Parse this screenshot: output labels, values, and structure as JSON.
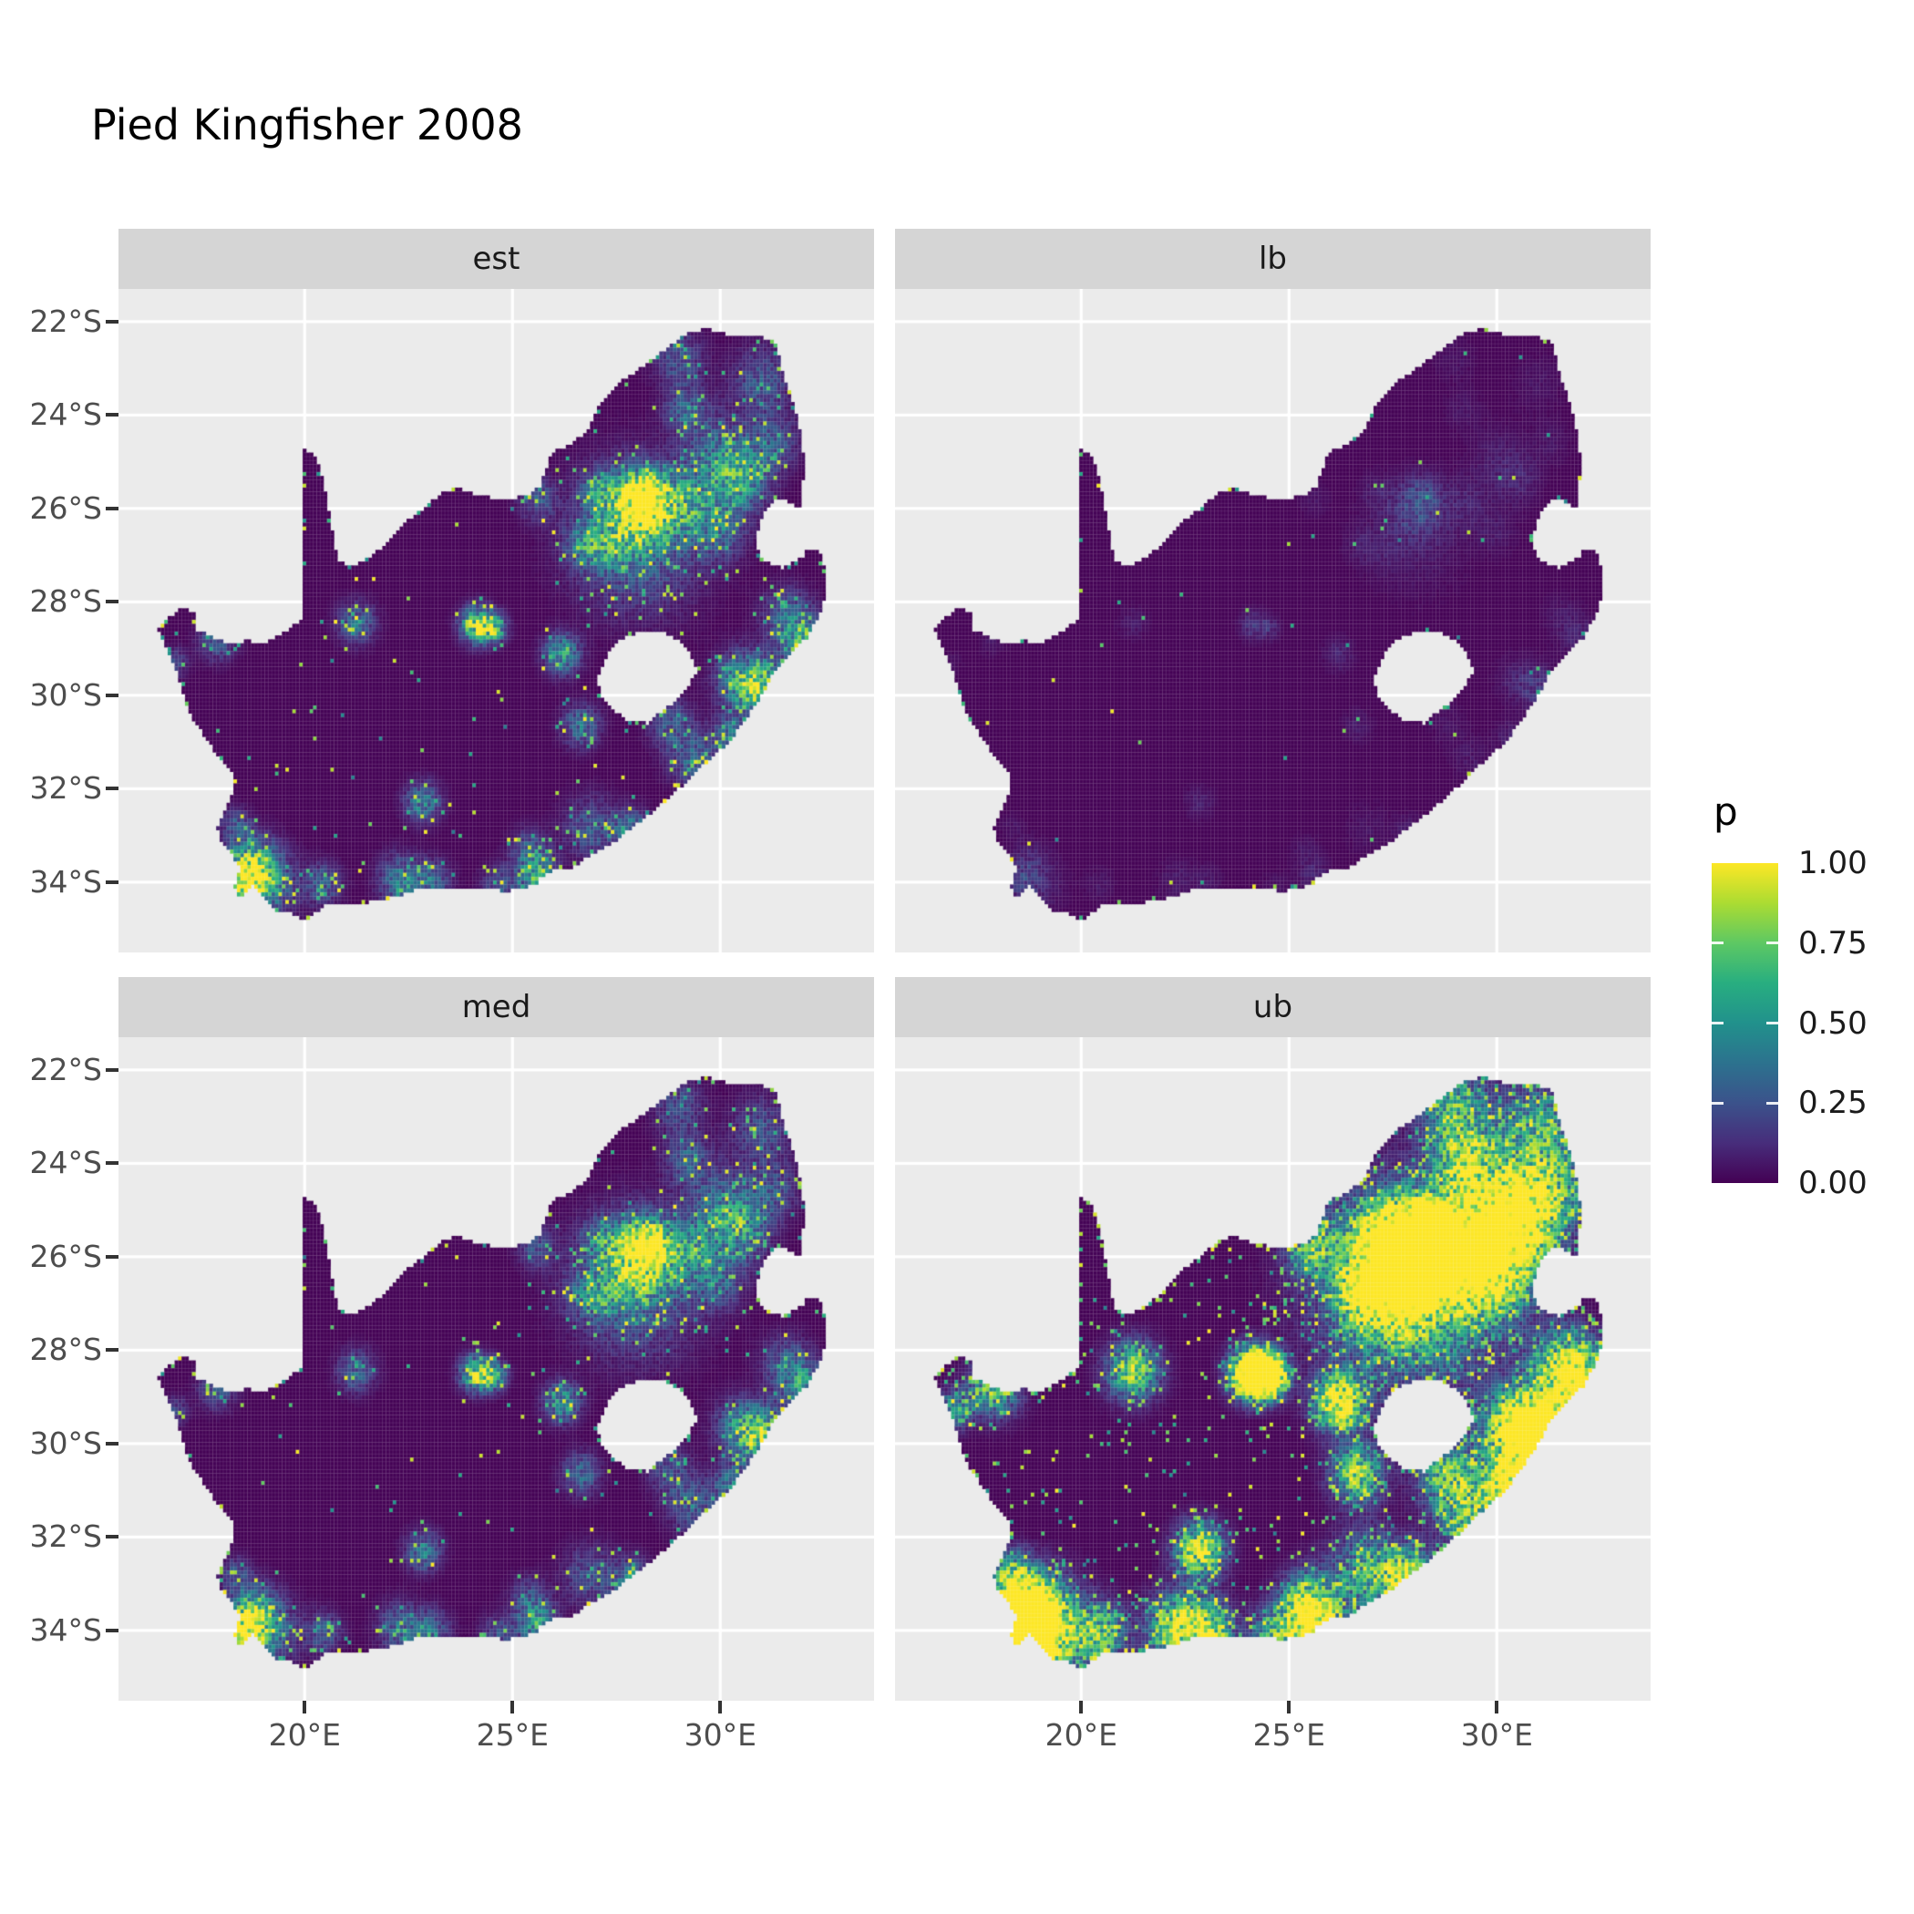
{
  "title": "Pied Kingfisher 2008",
  "legend": {
    "title": "p",
    "tick_labels": [
      "1.00",
      "0.75",
      "0.50",
      "0.25",
      "0.00"
    ],
    "tick_values": [
      1.0,
      0.75,
      0.5,
      0.25,
      0.0
    ],
    "bar_tick_values": [
      0.75,
      0.5,
      0.25
    ]
  },
  "chart_data": {
    "type": "heatmap",
    "subtype": "faceted-raster-probability-map",
    "title": "Pied Kingfisher 2008",
    "region": "South Africa",
    "variable": "p",
    "value_range": [
      0,
      1
    ],
    "facets": [
      {
        "key": "est",
        "label": "est"
      },
      {
        "key": "lb",
        "label": "lb"
      },
      {
        "key": "med",
        "label": "med"
      },
      {
        "key": "ub",
        "label": "ub"
      }
    ],
    "x_axis": {
      "ticks": [
        {
          "value": 20,
          "label": "20°E"
        },
        {
          "value": 25,
          "label": "25°E"
        },
        {
          "value": 30,
          "label": "30°E"
        }
      ]
    },
    "y_axis": {
      "ticks": [
        {
          "value": 22,
          "label": "22°S"
        },
        {
          "value": 24,
          "label": "24°S"
        },
        {
          "value": 26,
          "label": "26°S"
        },
        {
          "value": 28,
          "label": "28°S"
        },
        {
          "value": 30,
          "label": "30°S"
        },
        {
          "value": 32,
          "label": "32°S"
        },
        {
          "value": 34,
          "label": "34°S"
        }
      ]
    },
    "extent": {
      "lon_min_e": 15.52,
      "lon_max_e": 33.7,
      "lat_min_s": 21.3,
      "lat_max_s": 35.5
    },
    "cell_deg": 0.0833,
    "grid": "major gridlines at x ticks and y ticks, white on grey panel",
    "legend_position": "right",
    "colors": {
      "panel_background": "#EBEBEB",
      "grid_line": "#FFFFFF",
      "strip_background": "#D5D5D5",
      "strip_text": "#1A1A1A",
      "axis_text": "#4D4D4D",
      "axis_tick": "#333333",
      "title_text": "#000000"
    },
    "colormap": {
      "name": "viridis",
      "positions": [
        0,
        0.125,
        0.25,
        0.375,
        0.5,
        0.625,
        0.75,
        0.875,
        1
      ],
      "colors": [
        "#440154",
        "#472D7B",
        "#3B528B",
        "#2C728E",
        "#21918C",
        "#28AE80",
        "#5DC863",
        "#ABDC32",
        "#FDE725"
      ]
    },
    "outline": [
      [
        16.45,
        28.58
      ],
      [
        16.8,
        28.3
      ],
      [
        17.1,
        28.1
      ],
      [
        17.35,
        28.25
      ],
      [
        17.4,
        28.6
      ],
      [
        17.7,
        28.72
      ],
      [
        18.2,
        28.9
      ],
      [
        18.6,
        28.83
      ],
      [
        19.0,
        28.93
      ],
      [
        19.45,
        28.7
      ],
      [
        19.75,
        28.5
      ],
      [
        19.98,
        28.4
      ],
      [
        19.98,
        24.75
      ],
      [
        20.3,
        24.9
      ],
      [
        20.45,
        25.45
      ],
      [
        20.6,
        26.1
      ],
      [
        20.7,
        26.7
      ],
      [
        20.8,
        27.1
      ],
      [
        21.1,
        27.25
      ],
      [
        21.55,
        27.05
      ],
      [
        21.95,
        26.8
      ],
      [
        22.35,
        26.35
      ],
      [
        22.8,
        26.05
      ],
      [
        23.25,
        25.7
      ],
      [
        23.7,
        25.55
      ],
      [
        24.1,
        25.7
      ],
      [
        24.7,
        25.8
      ],
      [
        25.3,
        25.75
      ],
      [
        25.65,
        25.55
      ],
      [
        25.85,
        25.1
      ],
      [
        25.95,
        24.8
      ],
      [
        26.4,
        24.65
      ],
      [
        26.85,
        24.3
      ],
      [
        27.15,
        23.7
      ],
      [
        27.55,
        23.3
      ],
      [
        28.1,
        23.0
      ],
      [
        28.7,
        22.6
      ],
      [
        29.2,
        22.25
      ],
      [
        29.7,
        22.15
      ],
      [
        30.2,
        22.3
      ],
      [
        30.8,
        22.3
      ],
      [
        31.3,
        22.4
      ],
      [
        31.55,
        23.2
      ],
      [
        31.8,
        23.9
      ],
      [
        31.95,
        24.4
      ],
      [
        32.02,
        25.1
      ],
      [
        31.97,
        25.6
      ],
      [
        31.95,
        25.98
      ],
      [
        31.4,
        25.78
      ],
      [
        31.1,
        25.98
      ],
      [
        30.95,
        26.35
      ],
      [
        30.82,
        26.8
      ],
      [
        31.05,
        27.1
      ],
      [
        31.5,
        27.3
      ],
      [
        31.97,
        27.05
      ],
      [
        32.12,
        26.86
      ],
      [
        32.35,
        26.86
      ],
      [
        32.58,
        27.45
      ],
      [
        32.48,
        28.1
      ],
      [
        32.1,
        28.75
      ],
      [
        31.75,
        29.05
      ],
      [
        31.35,
        29.4
      ],
      [
        31.05,
        29.9
      ],
      [
        30.7,
        30.4
      ],
      [
        30.25,
        30.95
      ],
      [
        29.85,
        31.3
      ],
      [
        29.4,
        31.65
      ],
      [
        28.95,
        32.05
      ],
      [
        28.5,
        32.4
      ],
      [
        28.05,
        32.7
      ],
      [
        27.5,
        33.1
      ],
      [
        27.0,
        33.35
      ],
      [
        26.45,
        33.7
      ],
      [
        25.95,
        33.75
      ],
      [
        25.65,
        33.9
      ],
      [
        25.6,
        34.05
      ],
      [
        24.85,
        34.2
      ],
      [
        24.2,
        34.1
      ],
      [
        23.6,
        34.1
      ],
      [
        23.0,
        34.1
      ],
      [
        22.55,
        34.2
      ],
      [
        21.9,
        34.4
      ],
      [
        21.2,
        34.45
      ],
      [
        20.55,
        34.45
      ],
      [
        20.0,
        34.82
      ],
      [
        19.6,
        34.65
      ],
      [
        19.3,
        34.6
      ],
      [
        19.1,
        34.4
      ],
      [
        18.85,
        34.15
      ],
      [
        18.75,
        34.05
      ],
      [
        18.45,
        34.35
      ],
      [
        18.32,
        34.1
      ],
      [
        18.45,
        33.7
      ],
      [
        18.25,
        33.4
      ],
      [
        18.0,
        33.15
      ],
      [
        17.9,
        32.8
      ],
      [
        18.1,
        32.4
      ],
      [
        18.32,
        32.05
      ],
      [
        18.3,
        31.65
      ],
      [
        17.95,
        31.35
      ],
      [
        17.6,
        30.9
      ],
      [
        17.25,
        30.4
      ],
      [
        17.05,
        29.9
      ],
      [
        16.9,
        29.45
      ],
      [
        16.7,
        29.0
      ]
    ],
    "lesotho_hole": [
      [
        27.05,
        29.6
      ],
      [
        27.3,
        29.1
      ],
      [
        27.6,
        28.8
      ],
      [
        28.05,
        28.65
      ],
      [
        28.55,
        28.6
      ],
      [
        28.95,
        28.8
      ],
      [
        29.3,
        29.15
      ],
      [
        29.45,
        29.5
      ],
      [
        29.15,
        29.9
      ],
      [
        28.75,
        30.25
      ],
      [
        28.25,
        30.6
      ],
      [
        27.75,
        30.55
      ],
      [
        27.4,
        30.3
      ],
      [
        27.1,
        29.95
      ]
    ],
    "hotspots": [
      [
        28.05,
        26.05,
        0.5,
        1.05
      ],
      [
        28.25,
        25.7,
        0.3,
        0.9
      ],
      [
        28.0,
        26.6,
        1.0,
        0.4
      ],
      [
        27.1,
        25.65,
        0.3,
        0.38
      ],
      [
        26.7,
        26.75,
        0.3,
        0.33
      ],
      [
        29.25,
        25.9,
        0.45,
        0.48
      ],
      [
        29.2,
        23.9,
        0.35,
        0.33
      ],
      [
        30.0,
        24.9,
        0.55,
        0.38
      ],
      [
        30.5,
        25.4,
        0.45,
        0.52
      ],
      [
        31.0,
        23.3,
        0.5,
        0.28
      ],
      [
        29.0,
        22.8,
        0.4,
        0.28
      ],
      [
        31.3,
        24.6,
        0.4,
        0.28
      ],
      [
        24.15,
        28.5,
        0.25,
        1.0
      ],
      [
        24.55,
        28.55,
        0.2,
        0.75
      ],
      [
        26.2,
        29.12,
        0.28,
        0.62
      ],
      [
        26.65,
        30.65,
        0.3,
        0.4
      ],
      [
        21.25,
        28.45,
        0.3,
        0.38
      ],
      [
        22.85,
        32.3,
        0.28,
        0.5
      ],
      [
        31.0,
        29.85,
        0.4,
        0.9
      ],
      [
        30.45,
        29.65,
        0.4,
        0.4
      ],
      [
        32.0,
        28.8,
        0.35,
        0.55
      ],
      [
        31.6,
        28.3,
        0.4,
        0.33
      ],
      [
        30.3,
        30.9,
        0.3,
        0.48
      ],
      [
        29.35,
        31.35,
        0.4,
        0.33
      ],
      [
        27.9,
        32.95,
        0.3,
        0.52
      ],
      [
        26.9,
        32.85,
        0.45,
        0.28
      ],
      [
        25.6,
        33.85,
        0.3,
        0.62
      ],
      [
        25.4,
        33.3,
        0.3,
        0.28
      ],
      [
        18.55,
        33.95,
        0.35,
        1.05
      ],
      [
        19.0,
        34.05,
        0.5,
        0.52
      ],
      [
        18.8,
        33.5,
        0.35,
        0.38
      ],
      [
        18.35,
        32.8,
        0.25,
        0.3
      ],
      [
        20.45,
        34.05,
        0.3,
        0.33
      ],
      [
        22.3,
        33.95,
        0.35,
        0.42
      ],
      [
        23.05,
        34.0,
        0.3,
        0.38
      ],
      [
        24.7,
        34.1,
        0.3,
        0.28
      ],
      [
        28.8,
        30.6,
        0.35,
        0.28
      ],
      [
        30.0,
        26.5,
        0.4,
        0.33
      ],
      [
        27.2,
        26.9,
        0.35,
        0.28
      ],
      [
        25.6,
        25.8,
        0.3,
        0.28
      ],
      [
        17.9,
        28.8,
        0.3,
        0.33
      ],
      [
        16.9,
        29.3,
        0.2,
        0.25
      ]
    ],
    "facet_params": {
      "est": {
        "mult": 1.0,
        "dot": 0.005,
        "border": 0.1,
        "sigma_scale": 1.0,
        "speckle": 0.32
      },
      "lb": {
        "mult": 0.16,
        "dot": 0.0015,
        "border": 0.05,
        "sigma_scale": 0.85,
        "speckle": 0.1
      },
      "med": {
        "mult": 0.92,
        "dot": 0.005,
        "border": 0.1,
        "sigma_scale": 1.0,
        "speckle": 0.32
      },
      "ub": {
        "mult": 2.3,
        "dot": 0.03,
        "border": 0.22,
        "sigma_scale": 1.35,
        "speckle": 0.55
      }
    }
  }
}
